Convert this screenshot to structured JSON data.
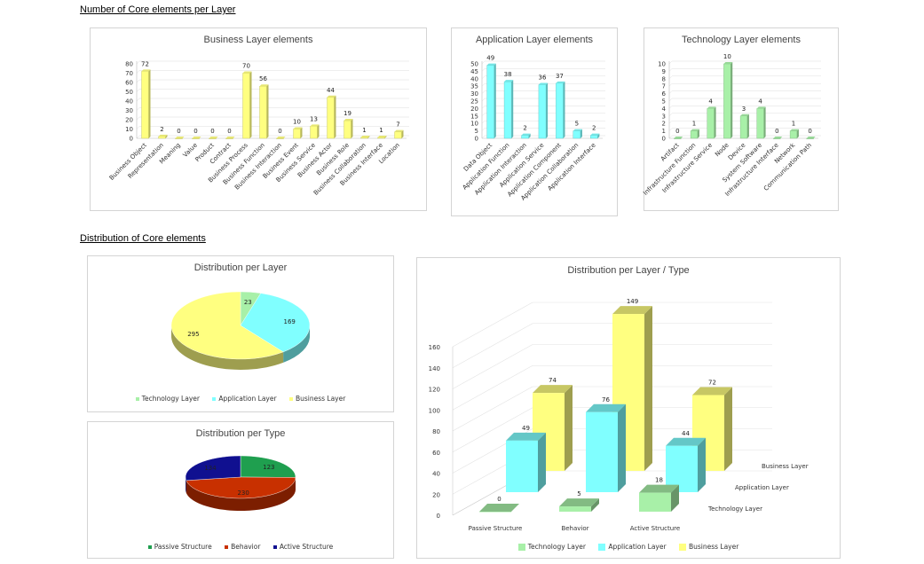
{
  "sections": {
    "counts_title": "Number of Core elements per Layer",
    "distribution_title": "Distribution of Core elements"
  },
  "colors": {
    "business": "#ffff80",
    "application": "#80ffff",
    "technology": "#a8f0a8",
    "passive": "#1f9f4f",
    "behavior": "#c83000",
    "active": "#101090"
  },
  "chart_data": [
    {
      "id": "business",
      "type": "bar",
      "title": "Business Layer elements",
      "ylim": [
        0,
        80
      ],
      "yticks": [
        0,
        10,
        20,
        30,
        40,
        50,
        60,
        70,
        80
      ],
      "categories": [
        "Business Object",
        "Representation",
        "Meaning",
        "Value",
        "Product",
        "Contract",
        "Business Process",
        "Business Function",
        "Business Interaction",
        "Business Event",
        "Business Service",
        "Business Actor",
        "Business Role",
        "Business Collaboration",
        "Business Interface",
        "Location"
      ],
      "values": [
        72,
        2,
        0,
        0,
        0,
        0,
        70,
        56,
        0,
        10,
        13,
        44,
        19,
        1,
        1,
        7
      ]
    },
    {
      "id": "application",
      "type": "bar",
      "title": "Application Layer elements",
      "ylim": [
        0,
        50
      ],
      "yticks": [
        0,
        5,
        10,
        15,
        20,
        25,
        30,
        35,
        40,
        45,
        50
      ],
      "categories": [
        "Data Object",
        "Application Function",
        "Application Interaction",
        "Application Service",
        "Application Component",
        "Application Collaboration",
        "Application Interface"
      ],
      "values": [
        49,
        38,
        2,
        36,
        37,
        5,
        2
      ]
    },
    {
      "id": "technology",
      "type": "bar",
      "title": "Technology Layer elements",
      "ylim": [
        0,
        10
      ],
      "yticks": [
        0,
        1,
        2,
        3,
        4,
        5,
        6,
        7,
        8,
        9,
        10
      ],
      "categories": [
        "Artifact",
        "Infrastructure Function",
        "Infrastructure Service",
        "Node",
        "Device",
        "System Software",
        "Infrastructure Interface",
        "Network",
        "Communication Path"
      ],
      "values": [
        0,
        1,
        4,
        10,
        3,
        4,
        0,
        1,
        0
      ]
    },
    {
      "id": "per_layer",
      "type": "pie",
      "title": "Distribution per Layer",
      "labels": [
        "Technology Layer",
        "Application Layer",
        "Business Layer"
      ],
      "values": [
        23,
        169,
        295
      ]
    },
    {
      "id": "per_type",
      "type": "pie",
      "title": "Distribution per Type",
      "labels": [
        "Passive Structure",
        "Behavior",
        "Active Structure"
      ],
      "values": [
        123,
        230,
        134
      ]
    },
    {
      "id": "layer_type",
      "type": "bar",
      "title": "Distribution per Layer / Type",
      "ylim": [
        0,
        160
      ],
      "yticks": [
        0,
        20,
        40,
        60,
        80,
        100,
        120,
        140,
        160
      ],
      "categories": [
        "Passive Structure",
        "Behavior",
        "Active Structure"
      ],
      "series": [
        {
          "name": "Technology Layer",
          "values": [
            0,
            5,
            18
          ]
        },
        {
          "name": "Application Layer",
          "values": [
            49,
            76,
            44
          ]
        },
        {
          "name": "Business Layer",
          "values": [
            74,
            149,
            72
          ]
        }
      ]
    }
  ]
}
